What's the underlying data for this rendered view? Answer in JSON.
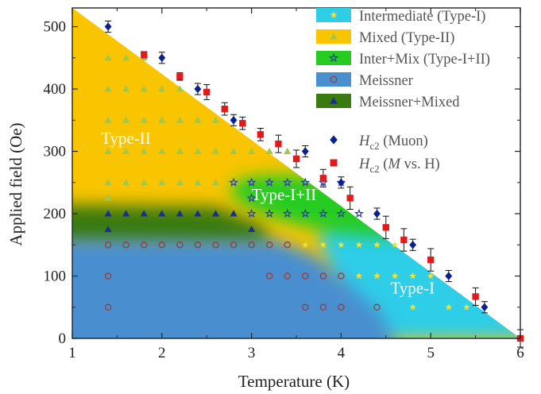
{
  "chart_data": {
    "type": "scatter",
    "title": "",
    "xlabel": "Temperature (K)",
    "ylabel": "Applied field (Oe)",
    "xlim": [
      1,
      6
    ],
    "ylim": [
      0,
      530
    ],
    "x_ticks": [
      1,
      2,
      3,
      4,
      5,
      6
    ],
    "y_ticks": [
      0,
      100,
      200,
      300,
      400,
      500
    ],
    "grid": false,
    "legend_position": "top-right",
    "region_labels": [
      {
        "text": "Type-II",
        "x": 1.32,
        "y": 312
      },
      {
        "text": "Type-I+II",
        "x": 3.0,
        "y": 222
      },
      {
        "text": "Type-I",
        "x": 4.55,
        "y": 72
      }
    ],
    "legend": [
      {
        "label": "Intermediate (Type-I)",
        "swatch": "#2ecde8",
        "marker": "star",
        "marker_color": "#f7e02a"
      },
      {
        "label": "Mixed (Type-II)",
        "swatch": "#f9c500",
        "marker": "triangle",
        "marker_color": "#a3c64b"
      },
      {
        "label": "Inter+Mix (Type-I+II)",
        "swatch": "#26cc22",
        "marker": "star-open",
        "marker_color": "#2a3db0"
      },
      {
        "label": "Meissner",
        "swatch": "#4a8fd0",
        "marker": "circle-open",
        "marker_color": "#9b3a3a"
      },
      {
        "label": "Meissner+Mixed",
        "swatch": "#3a7a10",
        "marker": "triangle",
        "marker_color": "#1a2f8a"
      }
    ],
    "hc2_series": [
      {
        "name": "H_c2 (Muon)",
        "name_main": "H",
        "name_sub": "c2",
        "name_rest": " (Muon)",
        "marker": "diamond",
        "color": "#0c1f8f",
        "x": [
          1.4,
          2.0,
          2.4,
          2.8,
          3.6,
          4.0,
          4.4,
          4.8,
          5.2,
          5.6
        ],
        "y": [
          500,
          450,
          400,
          350,
          300,
          250,
          200,
          150,
          100,
          50
        ],
        "err": [
          9,
          9,
          9,
          9,
          9,
          9,
          9,
          9,
          9,
          9
        ]
      },
      {
        "name": "H_c2 (M vs. H)",
        "name_main": "H",
        "name_sub": "c2",
        "name_rest_pre": " (",
        "name_italic": "M",
        "name_rest_post": " vs. H)",
        "marker": "square",
        "color": "#e41a1a",
        "x": [
          1.8,
          2.2,
          2.5,
          2.7,
          2.9,
          3.1,
          3.3,
          3.5,
          3.8,
          4.1,
          4.5,
          4.7,
          5.0,
          5.5,
          6.0
        ],
        "y": [
          455,
          420,
          395,
          368,
          345,
          327,
          312,
          288,
          257,
          225,
          178,
          158,
          126,
          67,
          0
        ],
        "err": [
          5,
          6,
          12,
          10,
          10,
          10,
          14,
          14,
          14,
          18,
          18,
          18,
          18,
          14,
          14
        ]
      }
    ],
    "phase_points": {
      "mixed_triangles": [
        [
          1.4,
          450
        ],
        [
          1.6,
          450
        ],
        [
          1.8,
          450
        ],
        [
          1.4,
          400
        ],
        [
          1.6,
          400
        ],
        [
          1.8,
          400
        ],
        [
          2.0,
          400
        ],
        [
          2.2,
          400
        ],
        [
          1.4,
          350
        ],
        [
          1.6,
          350
        ],
        [
          1.8,
          350
        ],
        [
          2.0,
          350
        ],
        [
          2.2,
          350
        ],
        [
          2.4,
          350
        ],
        [
          2.6,
          350
        ],
        [
          1.4,
          300
        ],
        [
          1.6,
          300
        ],
        [
          1.8,
          300
        ],
        [
          2.0,
          300
        ],
        [
          2.2,
          300
        ],
        [
          2.4,
          300
        ],
        [
          2.6,
          300
        ],
        [
          2.8,
          300
        ],
        [
          3.0,
          300
        ],
        [
          3.2,
          300
        ],
        [
          3.4,
          300
        ],
        [
          1.4,
          250
        ],
        [
          1.6,
          250
        ],
        [
          1.8,
          250
        ],
        [
          2.0,
          250
        ],
        [
          2.2,
          250
        ],
        [
          2.4,
          250
        ],
        [
          2.6,
          250
        ],
        [
          1.4,
          225
        ],
        [
          3.0,
          175
        ]
      ],
      "interface_stars": [
        [
          2.8,
          250
        ],
        [
          3.0,
          250
        ],
        [
          3.2,
          250
        ],
        [
          3.4,
          250
        ],
        [
          3.6,
          250
        ],
        [
          3.8,
          250
        ],
        [
          4.0,
          250
        ],
        [
          3.0,
          225
        ],
        [
          3.0,
          200
        ],
        [
          3.2,
          200
        ],
        [
          3.4,
          200
        ],
        [
          3.6,
          200
        ],
        [
          3.8,
          200
        ],
        [
          4.0,
          200
        ],
        [
          4.2,
          200
        ]
      ],
      "meissner_mixed_triangles": [
        [
          1.4,
          200
        ],
        [
          1.6,
          200
        ],
        [
          1.8,
          200
        ],
        [
          2.0,
          200
        ],
        [
          2.2,
          200
        ],
        [
          2.4,
          200
        ],
        [
          2.6,
          200
        ],
        [
          2.8,
          200
        ],
        [
          1.4,
          175
        ],
        [
          3.0,
          175
        ]
      ],
      "meissner_circles": [
        [
          1.4,
          150
        ],
        [
          1.6,
          150
        ],
        [
          1.8,
          150
        ],
        [
          2.0,
          150
        ],
        [
          2.2,
          150
        ],
        [
          2.4,
          150
        ],
        [
          2.6,
          150
        ],
        [
          2.8,
          150
        ],
        [
          3.0,
          150
        ],
        [
          3.2,
          150
        ],
        [
          3.4,
          150
        ],
        [
          1.4,
          100
        ],
        [
          3.2,
          100
        ],
        [
          3.4,
          100
        ],
        [
          3.6,
          100
        ],
        [
          3.8,
          100
        ],
        [
          4.0,
          100
        ],
        [
          1.4,
          50
        ],
        [
          3.6,
          50
        ],
        [
          3.8,
          50
        ],
        [
          4.0,
          50
        ],
        [
          4.4,
          50
        ]
      ],
      "intermediate_stars": [
        [
          3.6,
          150
        ],
        [
          3.8,
          150
        ],
        [
          4.0,
          150
        ],
        [
          4.2,
          150
        ],
        [
          4.4,
          150
        ],
        [
          4.6,
          150
        ],
        [
          4.2,
          100
        ],
        [
          4.4,
          100
        ],
        [
          4.6,
          100
        ],
        [
          4.8,
          100
        ],
        [
          5.0,
          100
        ],
        [
          4.8,
          50
        ],
        [
          5.2,
          50
        ],
        [
          5.4,
          50
        ]
      ]
    }
  }
}
